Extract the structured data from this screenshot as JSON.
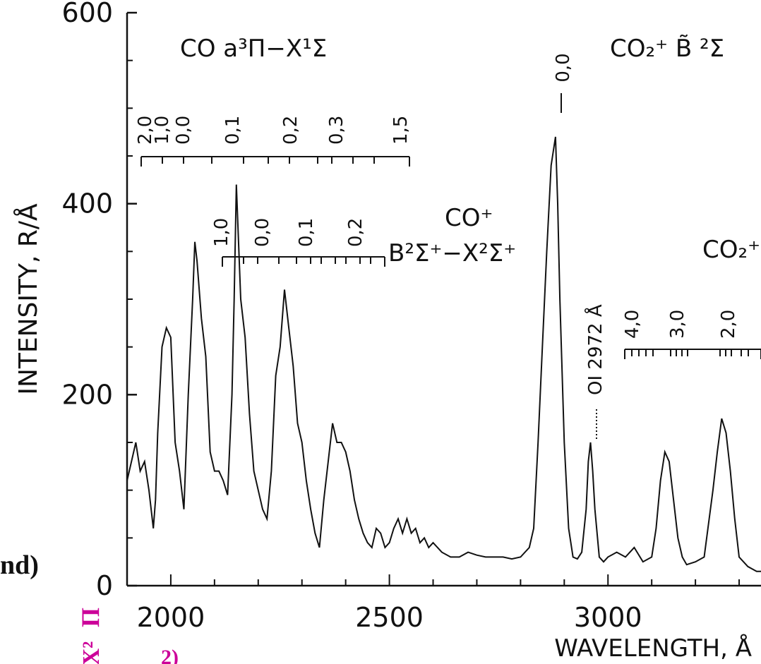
{
  "chart_data": {
    "type": "line",
    "xlabel": "WAVELENGTH, Å",
    "ylabel": "INTENSITY, R/Å",
    "xlim": [
      1900,
      3350
    ],
    "ylim": [
      0,
      600
    ],
    "x_ticks": [
      "2000",
      "2500",
      "3000"
    ],
    "y_ticks": [
      "0",
      "200",
      "400",
      "600"
    ],
    "series": [
      {
        "x": [
          1900,
          1910,
          1920,
          1930,
          1940,
          1950,
          1960,
          1965,
          1970,
          1980,
          1990,
          2000,
          2010,
          2020,
          2030,
          2040,
          2050,
          2055,
          2060,
          2070,
          2080,
          2090,
          2100,
          2110,
          2120,
          2130,
          2140,
          2145,
          2150,
          2160,
          2170,
          2180,
          2190,
          2200,
          2210,
          2220,
          2230,
          2240,
          2250,
          2260,
          2270,
          2280,
          2290,
          2300,
          2310,
          2320,
          2330,
          2340,
          2350,
          2360,
          2370,
          2380,
          2390,
          2400,
          2410,
          2420,
          2430,
          2440,
          2450,
          2460,
          2470,
          2480,
          2490,
          2500,
          2510,
          2520,
          2530,
          2540,
          2550,
          2560,
          2570,
          2580,
          2590,
          2600,
          2620,
          2640,
          2660,
          2680,
          2700,
          2720,
          2740,
          2760,
          2780,
          2800,
          2820,
          2830,
          2840,
          2850,
          2860,
          2870,
          2880,
          2885,
          2890,
          2900,
          2910,
          2920,
          2930,
          2940,
          2950,
          2955,
          2960,
          2965,
          2970,
          2980,
          2990,
          3000,
          3020,
          3040,
          3060,
          3080,
          3100,
          3110,
          3120,
          3130,
          3140,
          3150,
          3160,
          3170,
          3180,
          3200,
          3220,
          3240,
          3250,
          3260,
          3270,
          3280,
          3290,
          3300,
          3320,
          3340,
          3350
        ],
        "y": [
          110,
          130,
          150,
          120,
          130,
          100,
          60,
          90,
          160,
          250,
          270,
          260,
          150,
          120,
          80,
          200,
          300,
          360,
          340,
          280,
          240,
          140,
          120,
          120,
          110,
          95,
          200,
          300,
          420,
          300,
          260,
          180,
          120,
          100,
          80,
          70,
          120,
          220,
          250,
          310,
          270,
          230,
          170,
          150,
          110,
          80,
          55,
          40,
          90,
          130,
          170,
          150,
          150,
          140,
          120,
          90,
          70,
          55,
          45,
          40,
          60,
          55,
          40,
          45,
          60,
          70,
          55,
          70,
          55,
          60,
          45,
          50,
          40,
          45,
          35,
          30,
          30,
          35,
          32,
          30,
          30,
          30,
          28,
          30,
          40,
          60,
          150,
          250,
          350,
          440,
          470,
          400,
          300,
          150,
          60,
          30,
          28,
          35,
          80,
          130,
          150,
          120,
          80,
          30,
          25,
          30,
          35,
          30,
          40,
          25,
          30,
          60,
          110,
          140,
          130,
          90,
          50,
          30,
          22,
          25,
          30,
          100,
          140,
          175,
          160,
          120,
          70,
          30,
          20,
          15,
          15
        ]
      }
    ],
    "co_a3pi_band": {
      "title": "CO  a³Π−X¹Σ",
      "labels": [
        "2,0",
        "1,0",
        "0,0",
        "0,1",
        "0,2",
        "0,3",
        "1,5"
      ]
    },
    "co_plus_band": {
      "title": "CO⁺",
      "subtitle": "B²Σ⁺−X²Σ⁺",
      "labels": [
        "1,0",
        "0,0",
        "0,1",
        "0,2"
      ]
    },
    "co2_plus_b_band": {
      "title": "CO₂⁺ B̃ ²Σ",
      "labels": [
        "0,0"
      ]
    },
    "oi_line": {
      "label": "OI 2972 Å"
    },
    "co2_plus_a_band": {
      "title": "CO₂⁺",
      "labels": [
        "4,0",
        "3,0",
        "2,0"
      ]
    }
  },
  "fragments": {
    "left_partial": "nd)",
    "bottom_magenta_pi": "Π",
    "bottom_magenta_x": "X²"
  }
}
